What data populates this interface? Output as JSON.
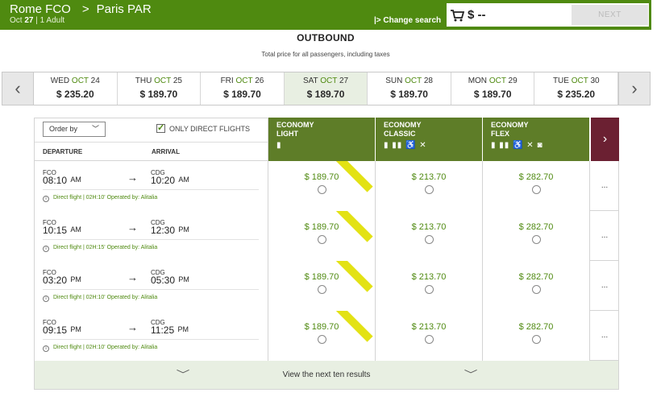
{
  "header": {
    "origin": "Rome FCO",
    "destination": "Paris PAR",
    "date_label": "Oct",
    "date_day": "27",
    "passengers": "| 1 Adult",
    "change_search": "|> Change search",
    "cart_price": "$ --",
    "next_label": "NEXT",
    "accent": "#4f8a10"
  },
  "outbound": {
    "title": "OUTBOUND",
    "subtitle": "Total price for all passengers, including taxes"
  },
  "dates": [
    {
      "dow": "WED",
      "month": "OCT",
      "day": "24",
      "price": "$ 235.20"
    },
    {
      "dow": "THU",
      "month": "OCT",
      "day": "25",
      "price": "$ 189.70"
    },
    {
      "dow": "FRI",
      "month": "OCT",
      "day": "26",
      "price": "$ 189.70"
    },
    {
      "dow": "SAT",
      "month": "OCT",
      "day": "27",
      "price": "$ 189.70"
    },
    {
      "dow": "SUN",
      "month": "OCT",
      "day": "28",
      "price": "$ 189.70"
    },
    {
      "dow": "MON",
      "month": "OCT",
      "day": "29",
      "price": "$ 189.70"
    },
    {
      "dow": "TUE",
      "month": "OCT",
      "day": "30",
      "price": "$ 235.20"
    }
  ],
  "table": {
    "order_by": "Order by",
    "only_direct": "ONLY DIRECT FLIGHTS",
    "departure": "DEPARTURE",
    "arrival": "ARRIVAL",
    "fares": [
      {
        "name1": "ECONOMY",
        "name2": "LIGHT",
        "icons": "🧳"
      },
      {
        "name1": "ECONOMY",
        "name2": "CLASSIC",
        "icons": "🧳🧳💺✕"
      },
      {
        "name1": "ECONOMY",
        "name2": "FLEX",
        "icons": "🧳🧳💺✕⬡"
      }
    ],
    "next_fare": "›",
    "more": "...",
    "view_next": "View the next ten results"
  },
  "flights": [
    {
      "dep_code": "FCO",
      "dep_time": "08:10",
      "dep_ampm": "AM",
      "arr_code": "CDG",
      "arr_time": "10:20",
      "arr_ampm": "AM",
      "info": "Direct flight | 02H:10' Operated by: Alitalia",
      "light": "$ 189.70",
      "classic": "$ 213.70",
      "flex": "$ 282.70"
    },
    {
      "dep_code": "FCO",
      "dep_time": "10:15",
      "dep_ampm": "AM",
      "arr_code": "CDG",
      "arr_time": "12:30",
      "arr_ampm": "PM",
      "info": "Direct flight | 02H:15' Operated by: Alitalia",
      "light": "$ 189.70",
      "classic": "$ 213.70",
      "flex": "$ 282.70"
    },
    {
      "dep_code": "FCO",
      "dep_time": "03:20",
      "dep_ampm": "PM",
      "arr_code": "CDG",
      "arr_time": "05:30",
      "arr_ampm": "PM",
      "info": "Direct flight | 02H:10' Operated by: Alitalia",
      "light": "$ 189.70",
      "classic": "$ 213.70",
      "flex": "$ 282.70"
    },
    {
      "dep_code": "FCO",
      "dep_time": "09:15",
      "dep_ampm": "PM",
      "arr_code": "CDG",
      "arr_time": "11:25",
      "arr_ampm": "PM",
      "info": "Direct flight | 02H:10' Operated by: Alitalia",
      "light": "$ 189.70",
      "classic": "$ 213.70",
      "flex": "$ 282.70"
    }
  ]
}
